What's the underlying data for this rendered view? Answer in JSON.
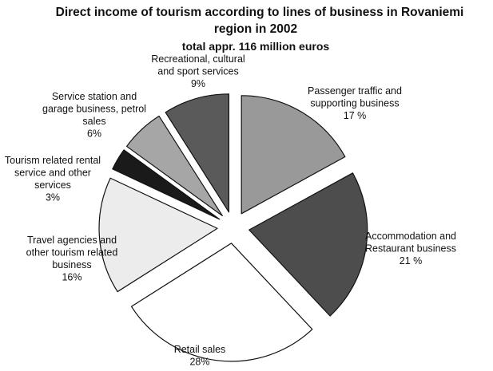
{
  "chart_data": {
    "type": "pie",
    "title": "Direct income of tourism according to lines of business in Rovaniemi region in 2002",
    "title_lines": [
      "Direct income of tourism according to lines of business in Rovaniemi",
      "region in 2002"
    ],
    "subtitle": "total appr. 116 million euros",
    "exploded": true,
    "slices": [
      {
        "label_lines": [
          "Passenger traffic and",
          "supporting business",
          "17 %"
        ],
        "value": 17,
        "color": "#999999"
      },
      {
        "label_lines": [
          "Accommodation and",
          "Restaurant business",
          "21 %"
        ],
        "value": 21,
        "color": "#4d4d4d"
      },
      {
        "label_lines": [
          "Retail sales",
          "28%"
        ],
        "value": 28,
        "color": "#ffffff"
      },
      {
        "label_lines": [
          "Travel agencies and",
          "other tourism related",
          "business",
          "16%"
        ],
        "value": 16,
        "color": "#ececec"
      },
      {
        "label_lines": [
          "Tourism related rental",
          "service and other",
          "services",
          "3%"
        ],
        "value": 3,
        "color": "#1a1a1a"
      },
      {
        "label_lines": [
          "Service station and",
          "garage business, petrol",
          "sales",
          "6%"
        ],
        "value": 6,
        "color": "#a6a6a6"
      },
      {
        "label_lines": [
          "Recreational, cultural",
          "and sport services",
          "9%"
        ],
        "value": 9,
        "color": "#5a5a5a"
      }
    ]
  }
}
